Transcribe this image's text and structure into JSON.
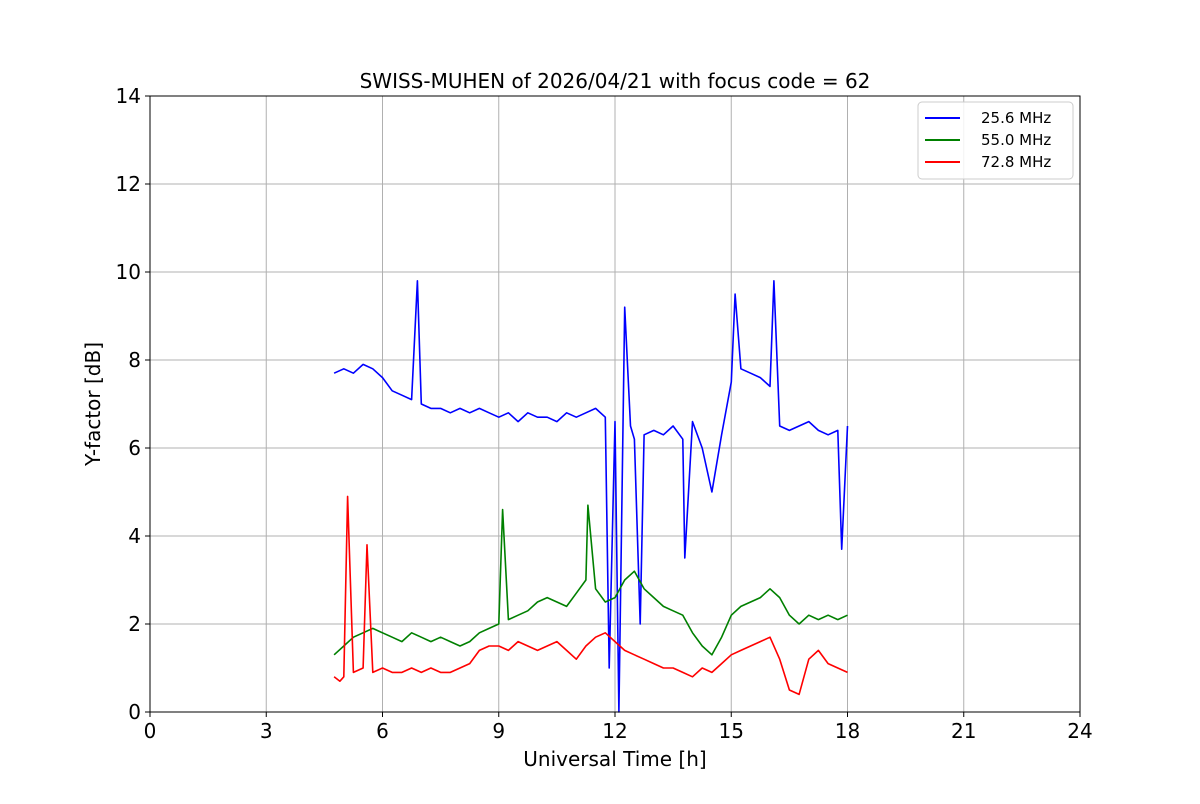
{
  "chart_data": {
    "type": "line",
    "title": "SWISS-MUHEN of 2026/04/21 with focus code = 62",
    "xlabel": "Universal Time [h]",
    "ylabel": "Y-factor [dB]",
    "xlim": [
      0,
      24
    ],
    "ylim": [
      0,
      14
    ],
    "xticks": [
      0,
      3,
      6,
      9,
      12,
      15,
      18,
      21,
      24
    ],
    "yticks": [
      0,
      2,
      4,
      6,
      8,
      10,
      12,
      14
    ],
    "grid": true,
    "legend_position": "top-right",
    "series": [
      {
        "name": "25.6 MHz",
        "color": "#0000ff",
        "x": [
          4.75,
          5.0,
          5.25,
          5.5,
          5.75,
          6.0,
          6.25,
          6.5,
          6.75,
          6.9,
          7.0,
          7.25,
          7.5,
          7.75,
          8.0,
          8.25,
          8.5,
          8.75,
          9.0,
          9.25,
          9.5,
          9.75,
          10.0,
          10.25,
          10.5,
          10.75,
          11.0,
          11.25,
          11.5,
          11.75,
          11.85,
          12.0,
          12.1,
          12.25,
          12.4,
          12.5,
          12.65,
          12.75,
          13.0,
          13.25,
          13.5,
          13.75,
          13.8,
          14.0,
          14.25,
          14.5,
          14.75,
          15.0,
          15.1,
          15.25,
          15.5,
          15.75,
          16.0,
          16.1,
          16.25,
          16.5,
          16.75,
          17.0,
          17.25,
          17.5,
          17.75,
          17.85,
          18.0
        ],
        "y": [
          7.7,
          7.8,
          7.7,
          7.9,
          7.8,
          7.6,
          7.3,
          7.2,
          7.1,
          9.8,
          7.0,
          6.9,
          6.9,
          6.8,
          6.9,
          6.8,
          6.9,
          6.8,
          6.7,
          6.8,
          6.6,
          6.8,
          6.7,
          6.7,
          6.6,
          6.8,
          6.7,
          6.8,
          6.9,
          6.7,
          1.0,
          6.6,
          0.0,
          9.2,
          6.5,
          6.2,
          2.0,
          6.3,
          6.4,
          6.3,
          6.5,
          6.2,
          3.5,
          6.6,
          6.0,
          5.0,
          6.3,
          7.5,
          9.5,
          7.8,
          7.7,
          7.6,
          7.4,
          9.8,
          6.5,
          6.4,
          6.5,
          6.6,
          6.4,
          6.3,
          6.4,
          3.7,
          6.5
        ]
      },
      {
        "name": "55.0 MHz",
        "color": "#008000",
        "x": [
          4.75,
          5.0,
          5.25,
          5.5,
          5.75,
          6.0,
          6.25,
          6.5,
          6.75,
          7.0,
          7.25,
          7.5,
          7.75,
          8.0,
          8.25,
          8.5,
          8.75,
          9.0,
          9.1,
          9.25,
          9.5,
          9.75,
          10.0,
          10.25,
          10.5,
          10.75,
          11.0,
          11.25,
          11.3,
          11.5,
          11.75,
          12.0,
          12.25,
          12.5,
          12.75,
          13.0,
          13.25,
          13.5,
          13.75,
          14.0,
          14.25,
          14.5,
          14.75,
          15.0,
          15.25,
          15.5,
          15.75,
          16.0,
          16.25,
          16.5,
          16.75,
          17.0,
          17.25,
          17.5,
          17.75,
          18.0
        ],
        "y": [
          1.3,
          1.5,
          1.7,
          1.8,
          1.9,
          1.8,
          1.7,
          1.6,
          1.8,
          1.7,
          1.6,
          1.7,
          1.6,
          1.5,
          1.6,
          1.8,
          1.9,
          2.0,
          4.6,
          2.1,
          2.2,
          2.3,
          2.5,
          2.6,
          2.5,
          2.4,
          2.7,
          3.0,
          4.7,
          2.8,
          2.5,
          2.6,
          3.0,
          3.2,
          2.8,
          2.6,
          2.4,
          2.3,
          2.2,
          1.8,
          1.5,
          1.3,
          1.7,
          2.2,
          2.4,
          2.5,
          2.6,
          2.8,
          2.6,
          2.2,
          2.0,
          2.2,
          2.1,
          2.2,
          2.1,
          2.2
        ]
      },
      {
        "name": "72.8 MHz",
        "color": "#ff0000",
        "x": [
          4.75,
          4.9,
          5.0,
          5.1,
          5.25,
          5.5,
          5.6,
          5.75,
          6.0,
          6.25,
          6.5,
          6.75,
          7.0,
          7.25,
          7.5,
          7.75,
          8.0,
          8.25,
          8.5,
          8.75,
          9.0,
          9.25,
          9.5,
          9.75,
          10.0,
          10.25,
          10.5,
          10.75,
          11.0,
          11.25,
          11.5,
          11.75,
          12.0,
          12.25,
          12.5,
          12.75,
          13.0,
          13.25,
          13.5,
          13.75,
          14.0,
          14.25,
          14.5,
          14.75,
          15.0,
          15.25,
          15.5,
          15.75,
          16.0,
          16.25,
          16.5,
          16.75,
          17.0,
          17.25,
          17.5,
          17.75,
          18.0
        ],
        "y": [
          0.8,
          0.7,
          0.8,
          4.9,
          0.9,
          1.0,
          3.8,
          0.9,
          1.0,
          0.9,
          0.9,
          1.0,
          0.9,
          1.0,
          0.9,
          0.9,
          1.0,
          1.1,
          1.4,
          1.5,
          1.5,
          1.4,
          1.6,
          1.5,
          1.4,
          1.5,
          1.6,
          1.4,
          1.2,
          1.5,
          1.7,
          1.8,
          1.6,
          1.4,
          1.3,
          1.2,
          1.1,
          1.0,
          1.0,
          0.9,
          0.8,
          1.0,
          0.9,
          1.1,
          1.3,
          1.4,
          1.5,
          1.6,
          1.7,
          1.2,
          0.5,
          0.4,
          1.2,
          1.4,
          1.1,
          1.0,
          0.9
        ]
      }
    ]
  }
}
